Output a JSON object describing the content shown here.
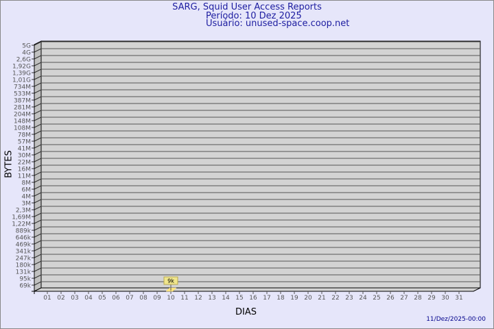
{
  "header": {
    "title": "SARG, Squid User Access Reports",
    "period": "Período: 10 Dez 2025",
    "user": "Usuário: unused-space.coop.net"
  },
  "footer": {
    "timestamp": "11/Dez/2025-00:00"
  },
  "colors": {
    "background": "#e6e6fa",
    "wall": "#d3d3d3",
    "side_wall": "#c0c0c0",
    "bar": "#ffe680",
    "label_box": "#f0e68c",
    "title": "#1c1ca0"
  },
  "chart_data": {
    "type": "bar",
    "title": "SARG, Squid User Access Reports",
    "xlabel": "DIAS",
    "ylabel": "BYTES",
    "y_scale": "log",
    "y_ticks": [
      "5G",
      "4G",
      "2,6G",
      "1,92G",
      "1,39G",
      "1,01G",
      "734M",
      "533M",
      "387M",
      "281M",
      "204M",
      "148M",
      "108M",
      "78M",
      "57M",
      "41M",
      "30M",
      "22M",
      "16M",
      "11M",
      "8M",
      "6M",
      "4M",
      "3M",
      "2,3M",
      "1,69M",
      "1,22M",
      "889k",
      "646k",
      "469k",
      "341k",
      "247k",
      "180k",
      "131k",
      "95k",
      "69k"
    ],
    "categories": [
      "01",
      "02",
      "03",
      "04",
      "05",
      "06",
      "07",
      "08",
      "09",
      "10",
      "11",
      "12",
      "13",
      "14",
      "15",
      "16",
      "17",
      "18",
      "19",
      "20",
      "21",
      "22",
      "23",
      "24",
      "25",
      "26",
      "27",
      "28",
      "29",
      "30",
      "31"
    ],
    "values": [
      0,
      0,
      0,
      0,
      0,
      0,
      0,
      0,
      0,
      9000,
      0,
      0,
      0,
      0,
      0,
      0,
      0,
      0,
      0,
      0,
      0,
      0,
      0,
      0,
      0,
      0,
      0,
      0,
      0,
      0,
      0
    ],
    "data_labels": {
      "10": "9k"
    },
    "grid": true,
    "legend": "none"
  }
}
